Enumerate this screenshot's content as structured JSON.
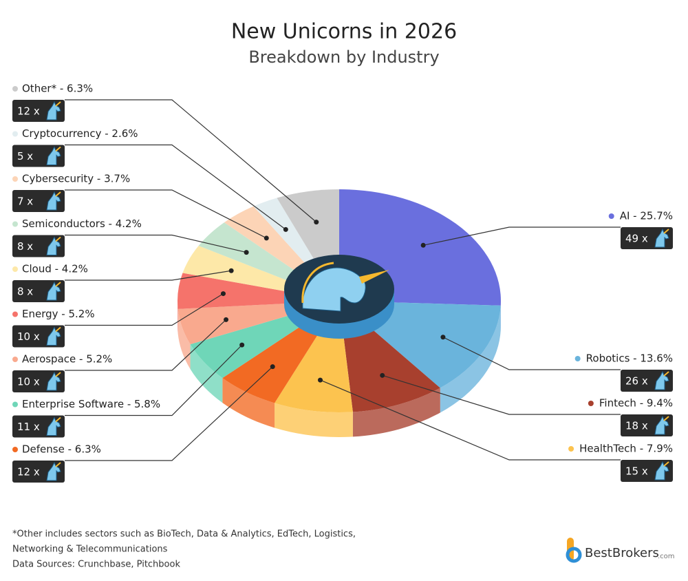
{
  "chart_data": {
    "type": "pie3d",
    "title": "New Unicorns in 2026",
    "subtitle": "Breakdown by Industry",
    "categories": [
      "AI - 25.7%",
      "Robotics - 13.6%",
      "Fintech - 9.4%",
      "HealthTech - 7.9%",
      "Defense - 6.3%",
      "Enterprise Software - 5.8%",
      "Aerospace - 5.2%",
      "Energy - 5.2%",
      "Cloud - 4.2%",
      "Semiconductors - 4.2%",
      "Cybersecurity - 3.7%",
      "Cryptocurrency - 2.6%",
      "Other* - 6.3%"
    ],
    "values": [
      25.7,
      13.6,
      9.4,
      7.9,
      6.3,
      5.8,
      5.2,
      5.2,
      4.2,
      4.2,
      3.7,
      2.6,
      6.3
    ],
    "counts": [
      49,
      26,
      18,
      15,
      12,
      11,
      10,
      10,
      8,
      8,
      7,
      5,
      12
    ],
    "count_labels": [
      "49 x",
      "26 x",
      "18 x",
      "15 x",
      "12 x",
      "11 x",
      "10 x",
      "10 x",
      "8 x",
      "8 x",
      "7 x",
      "5 x",
      "12 x"
    ],
    "colors": [
      "#6a6fde",
      "#6ab4dc",
      "#a8402e",
      "#fcc34f",
      "#f26a23",
      "#6fd6b8",
      "#f9a98e",
      "#f5736b",
      "#fde8a8",
      "#c5e5cf",
      "#fcd4b6",
      "#e2edf0",
      "#cbcbcb"
    ],
    "footnotes": [
      "*Other includes sectors such as BioTech, Data & Analytics, EdTech, Logistics,",
      "Networking & Telecommunications",
      "Data Sources: Crunchbase, Pitchbook"
    ],
    "logo": "BestBrokers",
    "logo_suffix": ".com"
  }
}
